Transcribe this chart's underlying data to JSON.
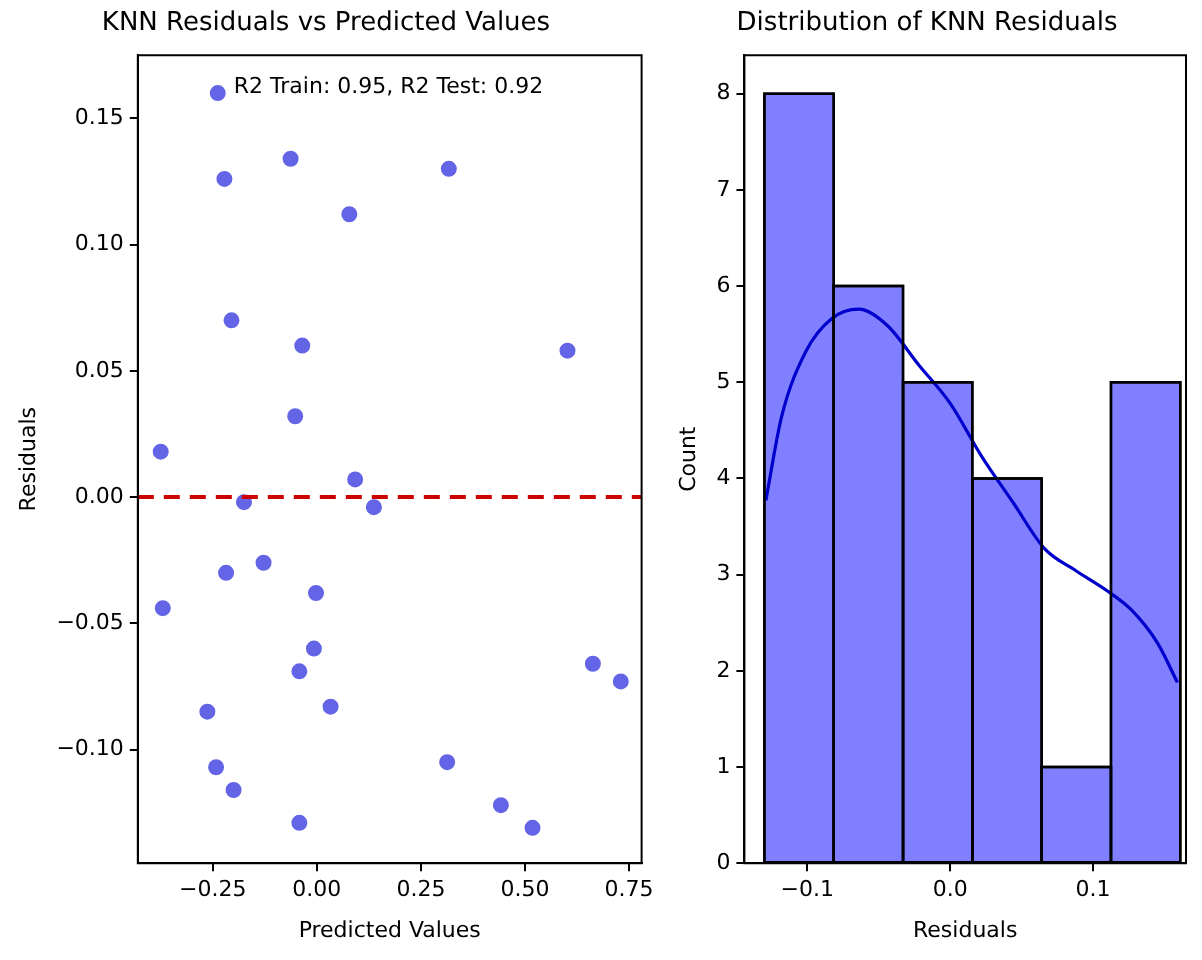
{
  "chart_data": [
    {
      "type": "scatter",
      "title": "KNN Residuals vs Predicted Values",
      "xlabel": "Predicted Values",
      "ylabel": "Residuals",
      "x": [
        -0.238,
        -0.222,
        -0.063,
        0.317,
        0.078,
        -0.205,
        -0.035,
        0.602,
        -0.052,
        -0.375,
        0.092,
        -0.175,
        0.137,
        -0.218,
        -0.128,
        -0.002,
        -0.37,
        -0.007,
        -0.042,
        0.033,
        -0.263,
        0.663,
        0.73,
        -0.242,
        -0.2,
        0.313,
        0.442,
        0.518,
        -0.042
      ],
      "values": [
        0.16,
        0.126,
        0.134,
        0.13,
        0.112,
        0.07,
        0.06,
        0.058,
        0.032,
        0.018,
        0.007,
        -0.002,
        -0.004,
        -0.03,
        -0.026,
        -0.038,
        -0.044,
        -0.06,
        -0.069,
        -0.083,
        -0.085,
        -0.066,
        -0.073,
        -0.107,
        -0.116,
        -0.105,
        -0.122,
        -0.131,
        -0.129
      ],
      "color": "#6464e6",
      "marker": "circle",
      "xlim": [
        -0.43,
        0.78
      ],
      "ylim": [
        -0.145,
        0.175
      ],
      "xticks": [
        {
          "value": -0.25,
          "label": "−0.25"
        },
        {
          "value": 0,
          "label": "0.00"
        },
        {
          "value": 0.25,
          "label": "0.25"
        },
        {
          "value": 0.5,
          "label": "0.50"
        },
        {
          "value": 0.75,
          "label": "0.75"
        }
      ],
      "yticks": [
        {
          "value": -0.1,
          "label": "−0.10"
        },
        {
          "value": -0.05,
          "label": "−0.05"
        },
        {
          "value": 0,
          "label": "0.00"
        },
        {
          "value": 0.05,
          "label": "0.05"
        },
        {
          "value": 0.1,
          "label": "0.10"
        },
        {
          "value": 0.15,
          "label": "0.15"
        }
      ],
      "ref_lines": [
        {
          "axis": "y",
          "value": 0,
          "color": "#cc0000",
          "line_style": "dashed"
        }
      ],
      "annotations": [
        "R2 Train: 0.95, R2 Test: 0.92"
      ],
      "grid": false
    },
    {
      "type": "histogram",
      "title": "Distribution of KNN Residuals",
      "xlabel": "Residuals",
      "ylabel": "Count",
      "bins": [
        -0.13,
        -0.0815,
        -0.033,
        0.0155,
        0.064,
        0.1125,
        0.161
      ],
      "values": [
        8,
        6,
        5,
        4,
        1,
        5
      ],
      "color": "#7f7fff",
      "series": [
        {
          "type": "line",
          "color": "#0000cc",
          "x": [
            -0.129,
            -0.118,
            -0.101,
            -0.083,
            -0.064,
            -0.044,
            -0.022,
            0.0,
            0.022,
            0.044,
            0.066,
            0.088,
            0.11,
            0.127,
            0.145,
            0.159
          ],
          "values": [
            3.77,
            4.64,
            5.32,
            5.66,
            5.76,
            5.59,
            5.18,
            4.78,
            4.23,
            3.75,
            3.27,
            3.04,
            2.83,
            2.63,
            2.29,
            1.88
          ]
        }
      ],
      "xlim": [
        -0.144,
        0.165
      ],
      "ylim": [
        0,
        8.4
      ],
      "xticks": [
        {
          "value": -0.1,
          "label": "−0.1"
        },
        {
          "value": 0,
          "label": "0.0"
        },
        {
          "value": 0.1,
          "label": "0.1"
        }
      ],
      "yticks": [
        0,
        1,
        2,
        3,
        4,
        5,
        6,
        7,
        8
      ],
      "grid": false
    }
  ]
}
